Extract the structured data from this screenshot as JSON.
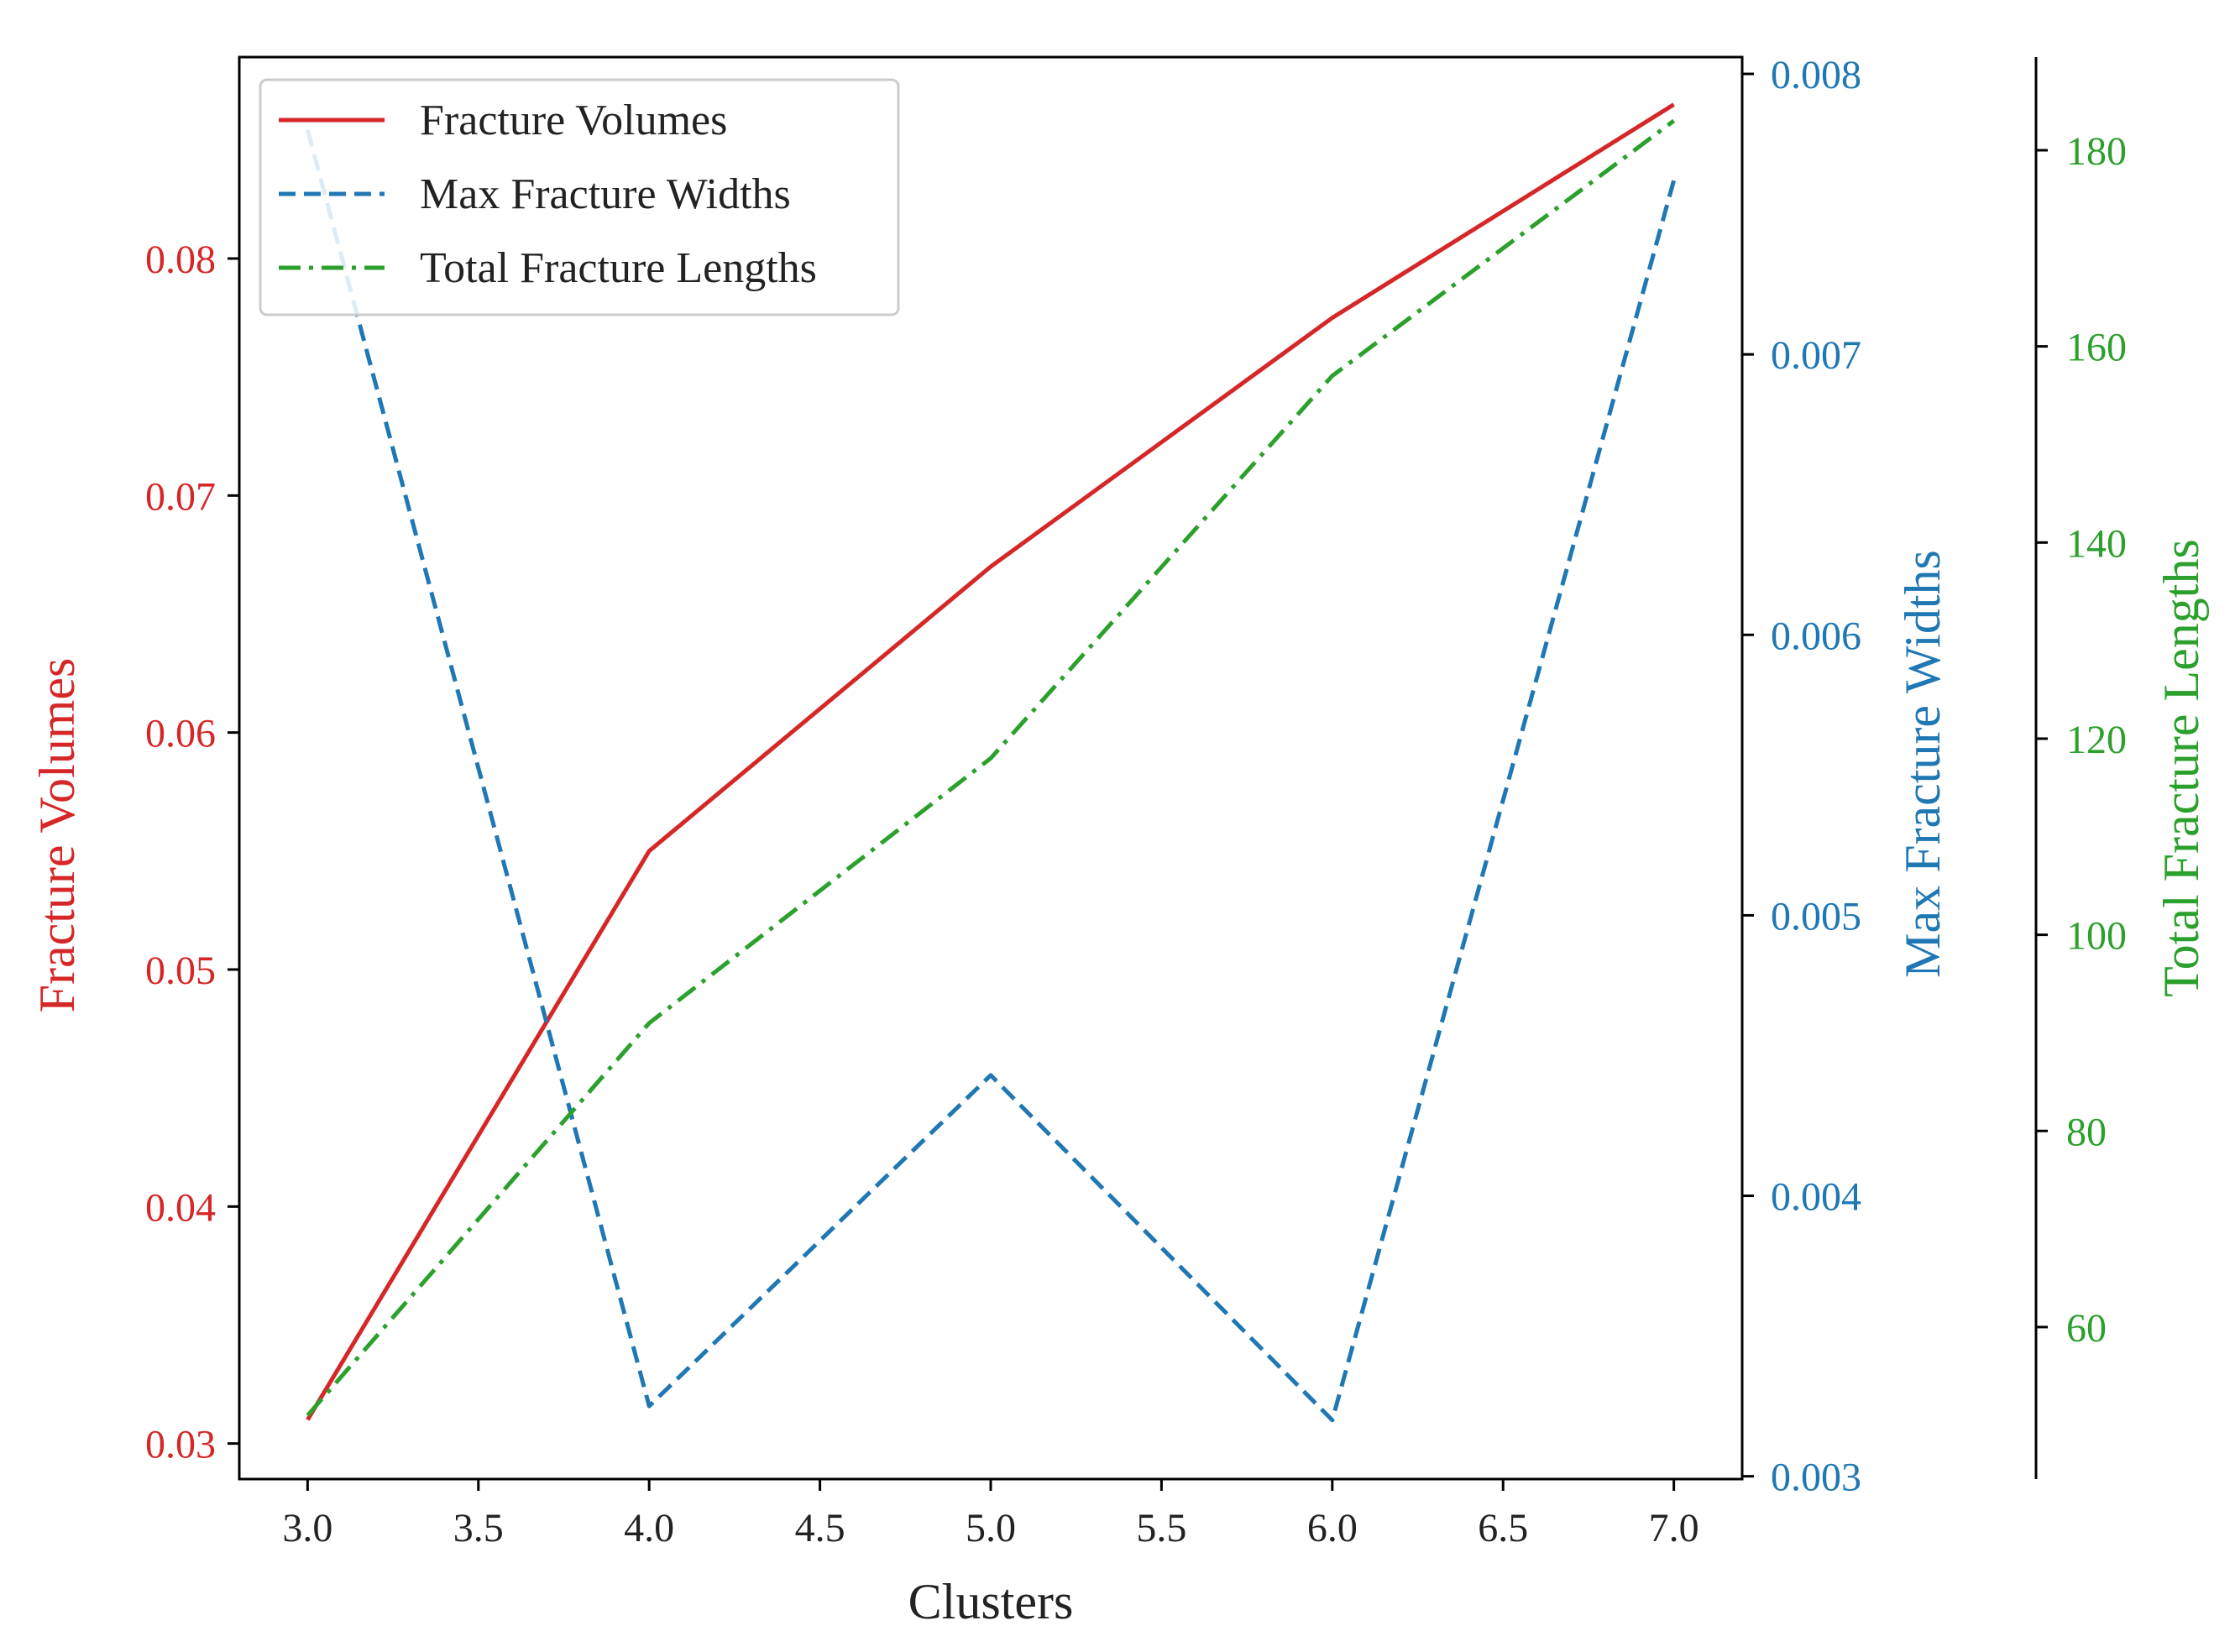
{
  "chart_data": {
    "type": "line",
    "x": [
      3.0,
      4.0,
      5.0,
      6.0,
      7.0
    ],
    "xlabel": "Clusters",
    "xticks": [
      "3.0",
      "3.5",
      "4.0",
      "4.5",
      "5.0",
      "5.5",
      "6.0",
      "6.5",
      "7.0"
    ],
    "xlim": [
      2.8,
      7.2
    ],
    "grid": false,
    "legend_position": "top-left",
    "series": [
      {
        "name": "Fracture Volumes",
        "axis": "left",
        "color": "#d62728",
        "linestyle": "solid",
        "values": [
          0.031,
          0.055,
          0.067,
          0.0775,
          0.0865
        ]
      },
      {
        "name": "Max Fracture Widths",
        "axis": "right",
        "color": "#1f77b4",
        "linestyle": "dashed",
        "values": [
          0.0078,
          0.00325,
          0.00443,
          0.0032,
          0.00762
        ]
      },
      {
        "name": "Total Fracture Lengths",
        "axis": "right-outer",
        "color": "#2ca02c",
        "linestyle": "dash-dot",
        "values": [
          51,
          91,
          118,
          157,
          183
        ]
      }
    ],
    "axes": {
      "left": {
        "label": "Fracture Volumes",
        "color": "#d62728",
        "ylim": [
          0.0285,
          0.0885
        ],
        "ticks": [
          "0.03",
          "0.04",
          "0.05",
          "0.06",
          "0.07",
          "0.08"
        ]
      },
      "right": {
        "label": "Max Fracture Widths",
        "color": "#1f77b4",
        "ylim": [
          0.00299,
          0.00806
        ],
        "ticks": [
          "0.003",
          "0.004",
          "0.005",
          "0.006",
          "0.007",
          "0.008"
        ]
      },
      "right-outer": {
        "label": "Total Fracture Lengths",
        "color": "#2ca02c",
        "ylim": [
          44.5,
          189.5
        ],
        "ticks": [
          "60",
          "80",
          "100",
          "120",
          "140",
          "160",
          "180"
        ]
      }
    }
  }
}
